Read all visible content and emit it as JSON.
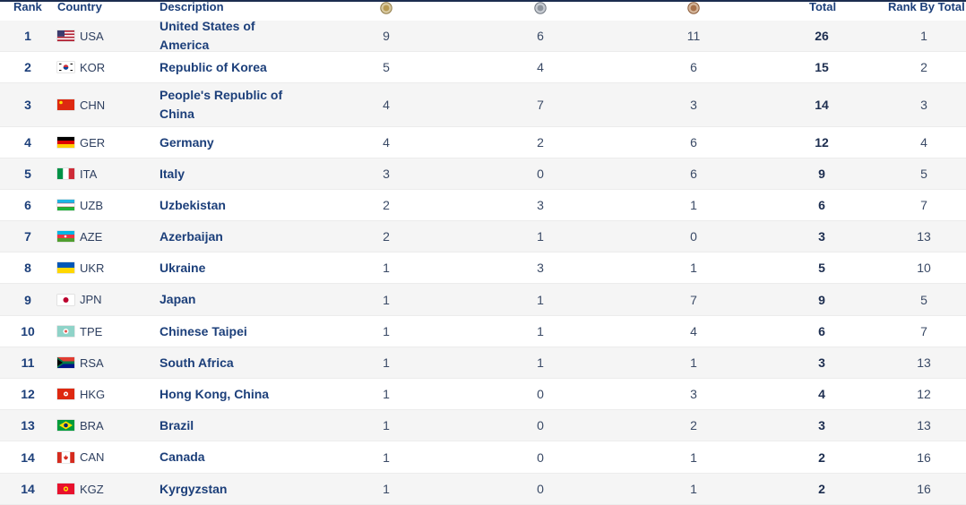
{
  "header": {
    "rank": "Rank",
    "country": "Country",
    "description": "Description",
    "total": "Total",
    "rank_by_total": "Rank By Total",
    "medal_icons": [
      "gold-medal-icon",
      "silver-medal-icon",
      "bronze-medal-icon"
    ]
  },
  "colors": {
    "gold": "#c9a227",
    "silver": "#a7adb5",
    "bronze": "#b07a4a",
    "row_alt": "#f5f5f5",
    "text_primary": "#1c3f7a"
  },
  "rows": [
    {
      "rank": "1",
      "code": "USA",
      "flag": "usa-flag-icon",
      "description": "United States of America",
      "gold": "9",
      "silver": "6",
      "bronze": "11",
      "total": "26",
      "rank_by_total": "1"
    },
    {
      "rank": "2",
      "code": "KOR",
      "flag": "kor-flag-icon",
      "description": "Republic of Korea",
      "gold": "5",
      "silver": "4",
      "bronze": "6",
      "total": "15",
      "rank_by_total": "2"
    },
    {
      "rank": "3",
      "code": "CHN",
      "flag": "chn-flag-icon",
      "description": "People's Republic of China",
      "gold": "4",
      "silver": "7",
      "bronze": "3",
      "total": "14",
      "rank_by_total": "3"
    },
    {
      "rank": "4",
      "code": "GER",
      "flag": "ger-flag-icon",
      "description": "Germany",
      "gold": "4",
      "silver": "2",
      "bronze": "6",
      "total": "12",
      "rank_by_total": "4"
    },
    {
      "rank": "5",
      "code": "ITA",
      "flag": "ita-flag-icon",
      "description": "Italy",
      "gold": "3",
      "silver": "0",
      "bronze": "6",
      "total": "9",
      "rank_by_total": "5"
    },
    {
      "rank": "6",
      "code": "UZB",
      "flag": "uzb-flag-icon",
      "description": "Uzbekistan",
      "gold": "2",
      "silver": "3",
      "bronze": "1",
      "total": "6",
      "rank_by_total": "7"
    },
    {
      "rank": "7",
      "code": "AZE",
      "flag": "aze-flag-icon",
      "description": "Azerbaijan",
      "gold": "2",
      "silver": "1",
      "bronze": "0",
      "total": "3",
      "rank_by_total": "13"
    },
    {
      "rank": "8",
      "code": "UKR",
      "flag": "ukr-flag-icon",
      "description": "Ukraine",
      "gold": "1",
      "silver": "3",
      "bronze": "1",
      "total": "5",
      "rank_by_total": "10"
    },
    {
      "rank": "9",
      "code": "JPN",
      "flag": "jpn-flag-icon",
      "description": "Japan",
      "gold": "1",
      "silver": "1",
      "bronze": "7",
      "total": "9",
      "rank_by_total": "5"
    },
    {
      "rank": "10",
      "code": "TPE",
      "flag": "tpe-flag-icon",
      "description": "Chinese Taipei",
      "gold": "1",
      "silver": "1",
      "bronze": "4",
      "total": "6",
      "rank_by_total": "7"
    },
    {
      "rank": "11",
      "code": "RSA",
      "flag": "rsa-flag-icon",
      "description": "South Africa",
      "gold": "1",
      "silver": "1",
      "bronze": "1",
      "total": "3",
      "rank_by_total": "13"
    },
    {
      "rank": "12",
      "code": "HKG",
      "flag": "hkg-flag-icon",
      "description": "Hong Kong, China",
      "gold": "1",
      "silver": "0",
      "bronze": "3",
      "total": "4",
      "rank_by_total": "12"
    },
    {
      "rank": "13",
      "code": "BRA",
      "flag": "bra-flag-icon",
      "description": "Brazil",
      "gold": "1",
      "silver": "0",
      "bronze": "2",
      "total": "3",
      "rank_by_total": "13"
    },
    {
      "rank": "14",
      "code": "CAN",
      "flag": "can-flag-icon",
      "description": "Canada",
      "gold": "1",
      "silver": "0",
      "bronze": "1",
      "total": "2",
      "rank_by_total": "16"
    },
    {
      "rank": "14",
      "code": "KGZ",
      "flag": "kgz-flag-icon",
      "description": "Kyrgyzstan",
      "gold": "1",
      "silver": "0",
      "bronze": "1",
      "total": "2",
      "rank_by_total": "16"
    }
  ]
}
